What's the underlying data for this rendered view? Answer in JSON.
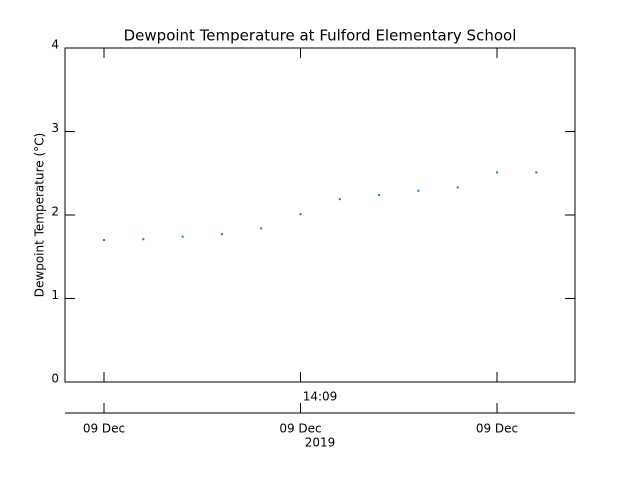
{
  "chart_data": {
    "type": "scatter",
    "title": "Dewpoint Temperature at Fulford Elementary School",
    "y_label": "Dewpoint Temperature (°C)",
    "x_label": "14:09",
    "x_sublabel": "2019",
    "categories": [
      "09 Dec",
      null,
      null,
      null,
      null,
      "09 Dec",
      null,
      null,
      null,
      null,
      "09 Dec",
      null
    ],
    "values": [
      1.7,
      1.71,
      1.74,
      1.77,
      1.84,
      2.01,
      2.19,
      2.24,
      2.29,
      2.33,
      2.51,
      2.51
    ],
    "color": "#0a7fc0",
    "ylim": [
      0,
      4
    ],
    "yticks": [
      0,
      1,
      2,
      3,
      4
    ]
  }
}
